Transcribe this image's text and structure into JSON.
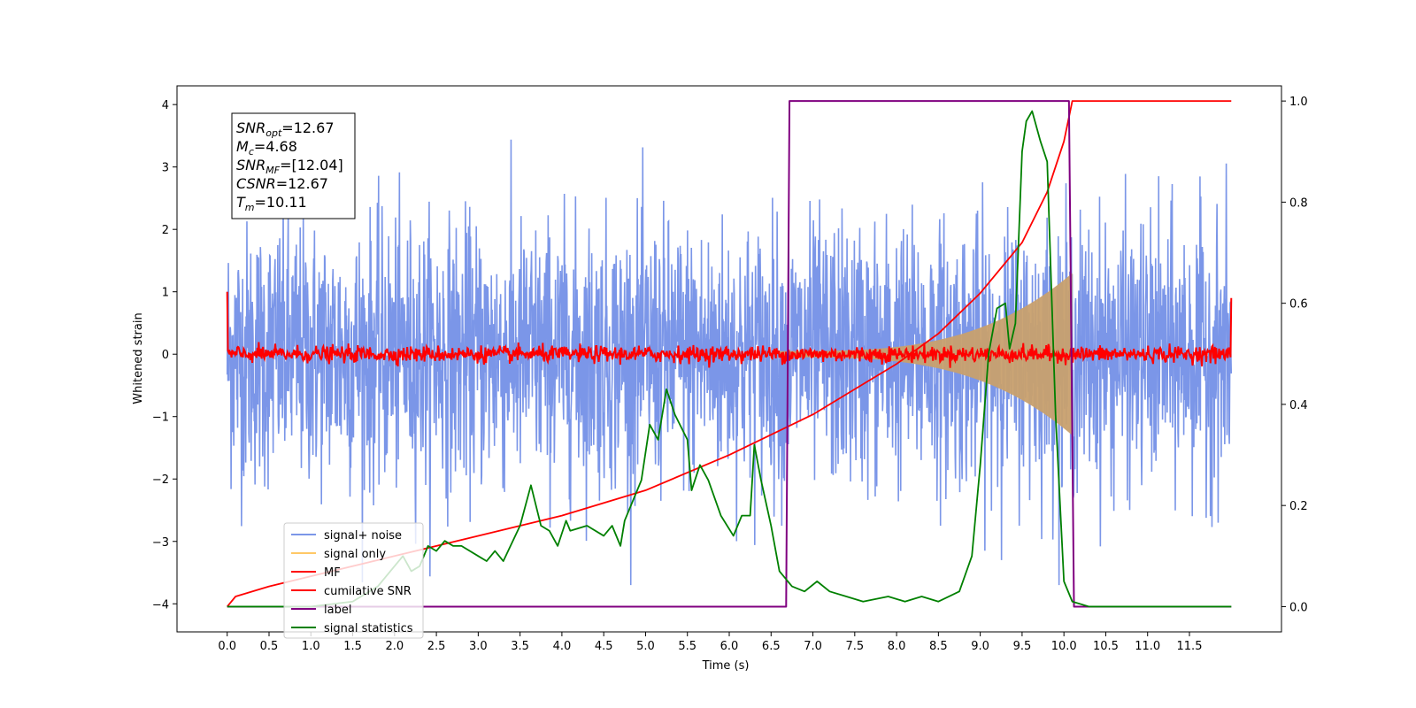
{
  "chart_data": {
    "type": "line",
    "xlabel": "Time (s)",
    "ylabel": "Whitened strain",
    "xlim": [
      -0.6,
      12.6
    ],
    "ylim_left": [
      -4.45,
      4.3
    ],
    "ylim_right": [
      -0.05,
      1.03
    ],
    "x_ticks": [
      "0.0",
      "0.5",
      "1.0",
      "1.5",
      "2.0",
      "2.5",
      "3.0",
      "3.5",
      "4.0",
      "4.5",
      "5.0",
      "5.5",
      "6.0",
      "6.5",
      "7.0",
      "7.5",
      "8.0",
      "8.5",
      "9.0",
      "9.5",
      "10.0",
      "10.5",
      "11.0",
      "11.5"
    ],
    "y_left_ticks": [
      "4",
      "3",
      "2",
      "1",
      "0",
      "−1",
      "−2",
      "−3",
      "−4"
    ],
    "y_right_ticks": [
      "1.0",
      "0.8",
      "0.6",
      "0.4",
      "0.2",
      "0.0"
    ],
    "grid": false,
    "legend_position": "lower-left",
    "annotation": [
      {
        "base": "SNR",
        "sub": "opt",
        "value": "=12.67"
      },
      {
        "base": "M",
        "sub": "c",
        "value": "=4.68"
      },
      {
        "base": "SNR",
        "sub": "MF",
        "value": "=[12.04]"
      },
      {
        "base": "CSNR",
        "sub": "",
        "value": "=12.67"
      },
      {
        "base": "T",
        "sub": "m",
        "value": "=10.11"
      }
    ],
    "series": [
      {
        "name": "signal+ noise",
        "color": "#7b96e8",
        "axis": "left",
        "x_range": [
          0,
          12.0
        ],
        "noise_std": 1.0,
        "description_values": {
          "max": 3.9,
          "min": -3.95
        }
      },
      {
        "name": "signal only",
        "color": "#ffc866",
        "axis": "left",
        "x_range": [
          6.6,
          10.1
        ],
        "amplitude_start": 0.05,
        "amplitude_end": 1.3
      },
      {
        "name": "MF",
        "color": "#ff0000",
        "axis": "left",
        "x_range": [
          0,
          12.0
        ],
        "start_value": 1.0,
        "end_value": 0.9,
        "noise_std": 0.05
      },
      {
        "name": "cumilative SNR",
        "color": "#ff0000",
        "axis": "right",
        "points": [
          [
            0,
            0
          ],
          [
            0.1,
            0.02
          ],
          [
            0.5,
            0.04
          ],
          [
            1,
            0.06
          ],
          [
            2,
            0.1
          ],
          [
            3,
            0.14
          ],
          [
            4,
            0.18
          ],
          [
            5,
            0.23
          ],
          [
            6,
            0.3
          ],
          [
            6.5,
            0.34
          ],
          [
            7,
            0.38
          ],
          [
            7.5,
            0.43
          ],
          [
            8,
            0.48
          ],
          [
            8.5,
            0.54
          ],
          [
            9,
            0.62
          ],
          [
            9.5,
            0.72
          ],
          [
            9.8,
            0.82
          ],
          [
            10.0,
            0.92
          ],
          [
            10.1,
            1.0
          ],
          [
            12.0,
            1.0
          ]
        ]
      },
      {
        "name": "label",
        "color": "#800080",
        "axis": "right",
        "points": [
          [
            0,
            0
          ],
          [
            6.68,
            0
          ],
          [
            6.72,
            1.0
          ],
          [
            10.06,
            1.0
          ],
          [
            10.12,
            0
          ],
          [
            12.0,
            0
          ]
        ]
      },
      {
        "name": "signal statistics",
        "color": "#008000",
        "axis": "right",
        "points": [
          [
            0,
            0
          ],
          [
            0.5,
            0.0
          ],
          [
            1.0,
            0.0
          ],
          [
            1.5,
            0.01
          ],
          [
            1.8,
            0.04
          ],
          [
            2.0,
            0.08
          ],
          [
            2.1,
            0.1
          ],
          [
            2.2,
            0.07
          ],
          [
            2.3,
            0.08
          ],
          [
            2.4,
            0.12
          ],
          [
            2.5,
            0.11
          ],
          [
            2.6,
            0.13
          ],
          [
            2.7,
            0.12
          ],
          [
            2.8,
            0.12
          ],
          [
            3.0,
            0.1
          ],
          [
            3.1,
            0.09
          ],
          [
            3.2,
            0.11
          ],
          [
            3.3,
            0.09
          ],
          [
            3.5,
            0.16
          ],
          [
            3.63,
            0.24
          ],
          [
            3.75,
            0.16
          ],
          [
            3.85,
            0.15
          ],
          [
            3.95,
            0.12
          ],
          [
            4.05,
            0.17
          ],
          [
            4.1,
            0.15
          ],
          [
            4.3,
            0.16
          ],
          [
            4.5,
            0.14
          ],
          [
            4.6,
            0.16
          ],
          [
            4.7,
            0.12
          ],
          [
            4.75,
            0.17
          ],
          [
            4.95,
            0.25
          ],
          [
            5.05,
            0.36
          ],
          [
            5.15,
            0.33
          ],
          [
            5.25,
            0.43
          ],
          [
            5.35,
            0.38
          ],
          [
            5.5,
            0.33
          ],
          [
            5.55,
            0.23
          ],
          [
            5.65,
            0.28
          ],
          [
            5.75,
            0.25
          ],
          [
            5.9,
            0.18
          ],
          [
            6.05,
            0.14
          ],
          [
            6.15,
            0.18
          ],
          [
            6.25,
            0.18
          ],
          [
            6.3,
            0.32
          ],
          [
            6.38,
            0.25
          ],
          [
            6.5,
            0.16
          ],
          [
            6.6,
            0.07
          ],
          [
            6.75,
            0.04
          ],
          [
            6.9,
            0.03
          ],
          [
            7.05,
            0.05
          ],
          [
            7.2,
            0.03
          ],
          [
            7.4,
            0.02
          ],
          [
            7.6,
            0.01
          ],
          [
            7.9,
            0.02
          ],
          [
            8.1,
            0.01
          ],
          [
            8.3,
            0.02
          ],
          [
            8.5,
            0.01
          ],
          [
            8.75,
            0.03
          ],
          [
            8.9,
            0.1
          ],
          [
            9.0,
            0.28
          ],
          [
            9.1,
            0.5
          ],
          [
            9.2,
            0.59
          ],
          [
            9.3,
            0.6
          ],
          [
            9.35,
            0.51
          ],
          [
            9.42,
            0.56
          ],
          [
            9.5,
            0.9
          ],
          [
            9.55,
            0.96
          ],
          [
            9.62,
            0.98
          ],
          [
            9.72,
            0.92
          ],
          [
            9.8,
            0.88
          ],
          [
            9.9,
            0.38
          ],
          [
            10.0,
            0.05
          ],
          [
            10.1,
            0.01
          ],
          [
            10.3,
            0.0
          ],
          [
            11.0,
            0.0
          ],
          [
            12.0,
            0.0
          ]
        ]
      }
    ]
  }
}
